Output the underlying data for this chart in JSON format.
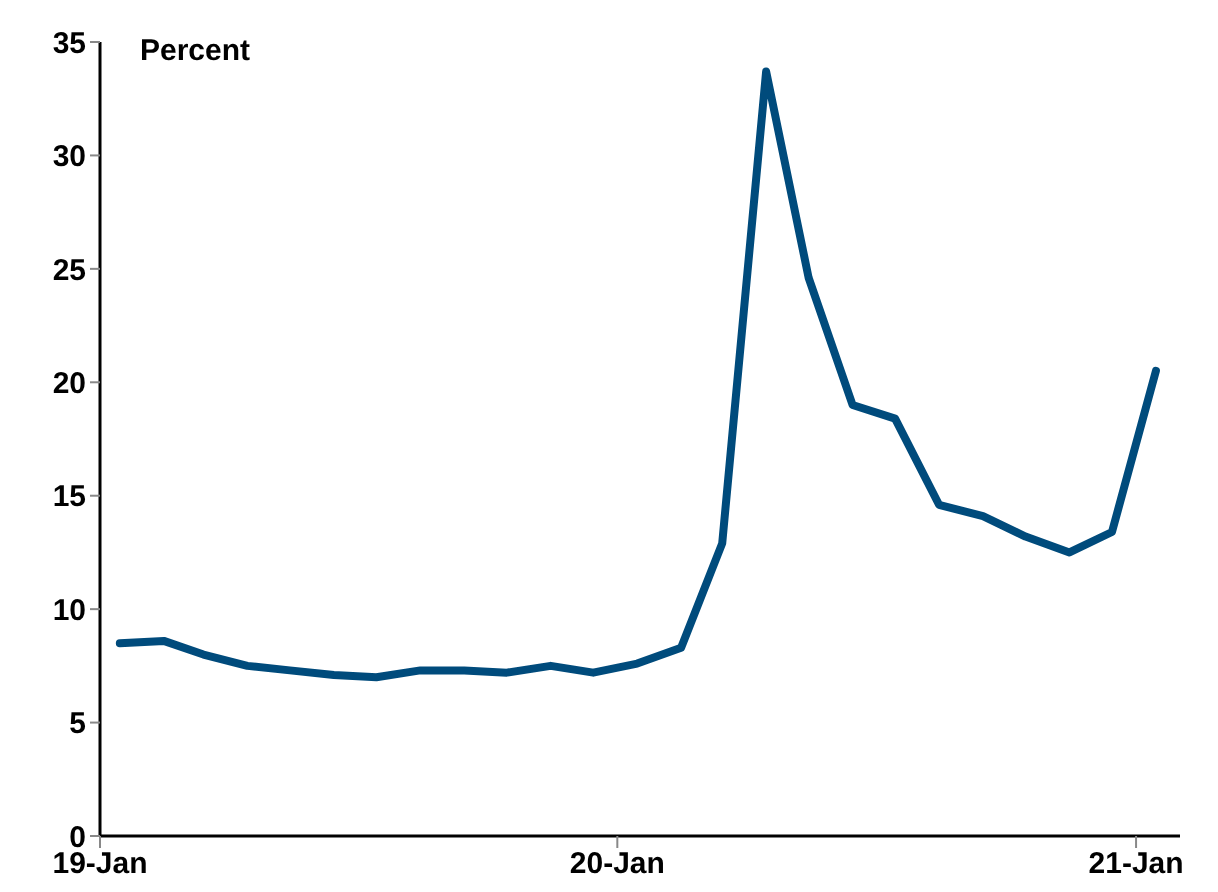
{
  "chart_data": {
    "type": "line",
    "ylabel": "Percent",
    "x": [
      "2019-01-15",
      "2019-02-15",
      "2019-03-15",
      "2019-04-15",
      "2019-05-15",
      "2019-06-15",
      "2019-07-15",
      "2019-08-15",
      "2019-09-15",
      "2019-10-15",
      "2019-11-15",
      "2019-12-15",
      "2020-01-15",
      "2020-02-15",
      "2020-03-15",
      "2020-04-15",
      "2020-05-15",
      "2020-06-15",
      "2020-07-15",
      "2020-08-15",
      "2020-09-15",
      "2020-10-15",
      "2020-11-15",
      "2020-12-15",
      "2021-01-15"
    ],
    "series": [
      {
        "color": "#004b7c",
        "values": [
          8.5,
          8.6,
          8.0,
          7.5,
          7.3,
          7.1,
          7.0,
          7.3,
          7.3,
          7.2,
          7.5,
          7.2,
          7.6,
          8.3,
          12.9,
          33.7,
          24.6,
          19.0,
          18.4,
          14.6,
          14.1,
          13.2,
          12.5,
          13.4,
          20.5
        ]
      }
    ],
    "xlim": [
      "2019-01-01",
      "2021-02-01"
    ],
    "xticks": [
      {
        "value": "2019-01-01",
        "label": "19-Jan"
      },
      {
        "value": "2020-01-01",
        "label": "20-Jan"
      },
      {
        "value": "2021-01-01",
        "label": "21-Jan"
      }
    ],
    "ylim": [
      0,
      35
    ],
    "yticks": [
      0,
      5,
      10,
      15,
      20,
      25,
      30,
      35
    ],
    "grid": false,
    "legend": false,
    "marker": "none",
    "line_style": "solid"
  }
}
